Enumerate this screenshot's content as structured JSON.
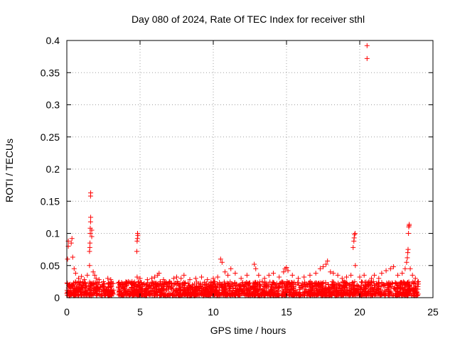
{
  "chart_data": {
    "type": "scatter",
    "title": "Day 080 of 2024, Rate Of TEC Index for receiver sthl",
    "xlabel": "GPS time / hours",
    "ylabel": "ROTI / TECUs",
    "xlim": [
      0,
      25
    ],
    "ylim": [
      0,
      0.4
    ],
    "xticks": [
      0,
      5,
      10,
      15,
      20,
      25
    ],
    "xtick_labels": [
      "0",
      "5",
      "10",
      "15",
      "20",
      "25"
    ],
    "yticks": [
      0,
      0.05,
      0.1,
      0.15,
      0.2,
      0.25,
      0.3,
      0.35,
      0.4
    ],
    "ytick_labels": [
      "0",
      "0.05",
      "0.1",
      "0.15",
      "0.2",
      "0.25",
      "0.3",
      "0.35",
      "0.4"
    ],
    "grid": true,
    "marker": "+",
    "color": "#ff0000",
    "baseline": {
      "x_segments": [
        [
          0,
          3.2
        ],
        [
          3.5,
          24
        ]
      ],
      "y_range": [
        0.003,
        0.025
      ],
      "points_per_hour": 90
    },
    "series": [
      {
        "name": "ROTI",
        "points": [
          [
            0.05,
            0.06
          ],
          [
            0.1,
            0.08
          ],
          [
            0.1,
            0.088
          ],
          [
            0.3,
            0.085
          ],
          [
            0.35,
            0.092
          ],
          [
            0.4,
            0.063
          ],
          [
            0.5,
            0.045
          ],
          [
            0.6,
            0.038
          ],
          [
            0.8,
            0.03
          ],
          [
            1.0,
            0.033
          ],
          [
            1.2,
            0.028
          ],
          [
            1.4,
            0.035
          ],
          [
            1.55,
            0.05
          ],
          [
            1.55,
            0.072
          ],
          [
            1.57,
            0.078
          ],
          [
            1.58,
            0.085
          ],
          [
            1.6,
            0.1
          ],
          [
            1.6,
            0.108
          ],
          [
            1.62,
            0.118
          ],
          [
            1.63,
            0.125
          ],
          [
            1.62,
            0.158
          ],
          [
            1.63,
            0.163
          ],
          [
            1.7,
            0.105
          ],
          [
            1.7,
            0.095
          ],
          [
            1.8,
            0.04
          ],
          [
            1.9,
            0.035
          ],
          [
            2.0,
            0.03
          ],
          [
            2.2,
            0.028
          ],
          [
            2.5,
            0.025
          ],
          [
            2.8,
            0.03
          ],
          [
            3.0,
            0.028
          ],
          [
            3.8,
            0.022
          ],
          [
            4.2,
            0.025
          ],
          [
            4.5,
            0.02
          ],
          [
            4.78,
            0.072
          ],
          [
            4.8,
            0.088
          ],
          [
            4.82,
            0.092
          ],
          [
            4.85,
            0.097
          ],
          [
            4.83,
            0.1
          ],
          [
            4.8,
            0.032
          ],
          [
            5.0,
            0.03
          ],
          [
            5.5,
            0.028
          ],
          [
            5.8,
            0.03
          ],
          [
            6.0,
            0.032
          ],
          [
            6.2,
            0.035
          ],
          [
            6.3,
            0.038
          ],
          [
            6.6,
            0.028
          ],
          [
            7.0,
            0.025
          ],
          [
            7.3,
            0.03
          ],
          [
            7.5,
            0.032
          ],
          [
            7.8,
            0.03
          ],
          [
            8.0,
            0.035
          ],
          [
            8.4,
            0.028
          ],
          [
            8.8,
            0.03
          ],
          [
            9.2,
            0.032
          ],
          [
            9.6,
            0.028
          ],
          [
            10.0,
            0.03
          ],
          [
            10.3,
            0.032
          ],
          [
            10.5,
            0.06
          ],
          [
            10.6,
            0.055
          ],
          [
            10.8,
            0.04
          ],
          [
            11.0,
            0.035
          ],
          [
            11.2,
            0.045
          ],
          [
            11.5,
            0.038
          ],
          [
            11.9,
            0.03
          ],
          [
            12.3,
            0.035
          ],
          [
            12.8,
            0.052
          ],
          [
            12.9,
            0.045
          ],
          [
            13.1,
            0.035
          ],
          [
            13.5,
            0.03
          ],
          [
            13.8,
            0.035
          ],
          [
            14.1,
            0.038
          ],
          [
            14.5,
            0.032
          ],
          [
            14.8,
            0.04
          ],
          [
            14.9,
            0.045
          ],
          [
            15.0,
            0.047
          ],
          [
            15.1,
            0.042
          ],
          [
            15.4,
            0.035
          ],
          [
            15.8,
            0.03
          ],
          [
            16.2,
            0.032
          ],
          [
            16.6,
            0.035
          ],
          [
            17.0,
            0.038
          ],
          [
            17.3,
            0.045
          ],
          [
            17.5,
            0.048
          ],
          [
            17.7,
            0.052
          ],
          [
            17.8,
            0.057
          ],
          [
            18.0,
            0.04
          ],
          [
            18.2,
            0.038
          ],
          [
            18.5,
            0.035
          ],
          [
            18.8,
            0.03
          ],
          [
            19.1,
            0.032
          ],
          [
            19.4,
            0.035
          ],
          [
            19.55,
            0.078
          ],
          [
            19.6,
            0.088
          ],
          [
            19.62,
            0.093
          ],
          [
            19.65,
            0.098
          ],
          [
            19.68,
            0.1
          ],
          [
            19.7,
            0.05
          ],
          [
            20.0,
            0.032
          ],
          [
            20.3,
            0.035
          ],
          [
            20.5,
            0.372
          ],
          [
            20.5,
            0.392
          ],
          [
            20.8,
            0.03
          ],
          [
            21.0,
            0.035
          ],
          [
            21.3,
            0.03
          ],
          [
            21.5,
            0.038
          ],
          [
            21.8,
            0.042
          ],
          [
            22.1,
            0.045
          ],
          [
            22.3,
            0.048
          ],
          [
            22.6,
            0.035
          ],
          [
            22.9,
            0.038
          ],
          [
            23.1,
            0.045
          ],
          [
            23.2,
            0.055
          ],
          [
            23.25,
            0.062
          ],
          [
            23.28,
            0.07
          ],
          [
            23.3,
            0.075
          ],
          [
            23.33,
            0.1
          ],
          [
            23.35,
            0.11
          ],
          [
            23.37,
            0.112
          ],
          [
            23.38,
            0.114
          ],
          [
            23.45,
            0.045
          ],
          [
            23.6,
            0.035
          ],
          [
            23.8,
            0.03
          ],
          [
            24.0,
            0.025
          ]
        ]
      }
    ]
  }
}
